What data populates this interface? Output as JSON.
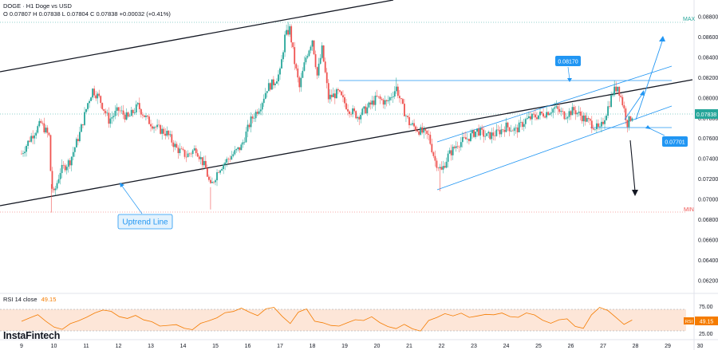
{
  "header": {
    "title": "DOGE · H1 Doge vs USD",
    "ohlc": "O 0.07807 H 0.07838 L 0.07804 C 0.07838 +0.00032 (+0.41%)"
  },
  "rsi_header": {
    "label": "RSI 14 close",
    "value": "49.15"
  },
  "brand": {
    "name": "InstaFintech"
  },
  "colors": {
    "up": "#26a69a",
    "down": "#ef5350",
    "channel": "#131722",
    "blue": "#2196f3",
    "label_bg": "#2196f3",
    "rsi_line": "#f57c00",
    "rsi_band": "#fde6d8",
    "price_tag": "#26a69a"
  },
  "chart_data": {
    "type": "candlestick",
    "yaxis": {
      "ticks": [
        "0.08800",
        "0.08600",
        "0.08400",
        "0.08200",
        "0.08000",
        "0.07800",
        "0.07600",
        "0.07400",
        "0.07200",
        "0.07000",
        "0.06800",
        "0.06600",
        "0.06400",
        "0.06200"
      ],
      "range": [
        0.061,
        0.0888
      ]
    },
    "xaxis": {
      "ticks": [
        "9",
        "10",
        "11",
        "12",
        "13",
        "14",
        "15",
        "16",
        "17",
        "18",
        "19",
        "20",
        "21",
        "22",
        "23",
        "24",
        "25",
        "26",
        "27",
        "28",
        "29",
        "30"
      ]
    },
    "max_label": "MAX",
    "min_label": "MIN",
    "price_labels": {
      "current": "0.07838",
      "resistance": "0.08170",
      "support": "0.07701"
    },
    "levels": {
      "resistance": 0.0817,
      "support": 0.07701,
      "max": 0.0875,
      "min": 0.0687,
      "current": 0.07838
    },
    "annotations": {
      "uptrend_line": "Uptrend Line"
    },
    "path": [
      [
        9,
        0.0745
      ],
      [
        9.3,
        0.0762
      ],
      [
        9.6,
        0.0775
      ],
      [
        9.85,
        0.0762
      ],
      [
        9.92,
        0.0715
      ],
      [
        10.0,
        0.0705
      ],
      [
        10.2,
        0.0728
      ],
      [
        10.5,
        0.0738
      ],
      [
        10.8,
        0.0765
      ],
      [
        11.05,
        0.0795
      ],
      [
        11.2,
        0.0808
      ],
      [
        11.4,
        0.08
      ],
      [
        11.7,
        0.0778
      ],
      [
        12.0,
        0.0788
      ],
      [
        12.3,
        0.078
      ],
      [
        12.6,
        0.0792
      ],
      [
        12.9,
        0.0778
      ],
      [
        13.2,
        0.077
      ],
      [
        13.5,
        0.0765
      ],
      [
        13.8,
        0.075
      ],
      [
        14.1,
        0.0743
      ],
      [
        14.4,
        0.075
      ],
      [
        14.7,
        0.073
      ],
      [
        14.85,
        0.0712
      ],
      [
        15.1,
        0.073
      ],
      [
        15.4,
        0.074
      ],
      [
        15.8,
        0.0752
      ],
      [
        16.1,
        0.0778
      ],
      [
        16.4,
        0.0793
      ],
      [
        16.6,
        0.081
      ],
      [
        16.8,
        0.0815
      ],
      [
        17.0,
        0.0825
      ],
      [
        17.15,
        0.086
      ],
      [
        17.3,
        0.0868
      ],
      [
        17.45,
        0.0835
      ],
      [
        17.6,
        0.081
      ],
      [
        17.8,
        0.084
      ],
      [
        18.0,
        0.0858
      ],
      [
        18.15,
        0.0822
      ],
      [
        18.3,
        0.0848
      ],
      [
        18.5,
        0.08
      ],
      [
        18.8,
        0.0805
      ],
      [
        19.1,
        0.079
      ],
      [
        19.4,
        0.0782
      ],
      [
        19.7,
        0.079
      ],
      [
        20.0,
        0.08
      ],
      [
        20.3,
        0.0795
      ],
      [
        20.6,
        0.081
      ],
      [
        20.8,
        0.079
      ],
      [
        21.0,
        0.0775
      ],
      [
        21.3,
        0.0768
      ],
      [
        21.6,
        0.0762
      ],
      [
        21.8,
        0.0738
      ],
      [
        22.0,
        0.0728
      ],
      [
        22.2,
        0.0743
      ],
      [
        22.5,
        0.0755
      ],
      [
        22.8,
        0.076
      ],
      [
        23.1,
        0.0768
      ],
      [
        23.4,
        0.0762
      ],
      [
        23.7,
        0.0765
      ],
      [
        24.0,
        0.0772
      ],
      [
        24.3,
        0.0768
      ],
      [
        24.6,
        0.0778
      ],
      [
        24.9,
        0.0782
      ],
      [
        25.2,
        0.0785
      ],
      [
        25.5,
        0.079
      ],
      [
        25.8,
        0.0783
      ],
      [
        26.1,
        0.0788
      ],
      [
        26.4,
        0.078
      ],
      [
        26.7,
        0.0773
      ],
      [
        26.9,
        0.0768
      ],
      [
        27.1,
        0.0786
      ],
      [
        27.3,
        0.0805
      ],
      [
        27.45,
        0.0812
      ],
      [
        27.6,
        0.0795
      ],
      [
        27.75,
        0.0775
      ],
      [
        27.9,
        0.0783
      ]
    ],
    "rsi": {
      "label": "RSI",
      "value": "49.15",
      "ticks": [
        "75.00",
        "25.00"
      ],
      "levels": [
        70,
        30
      ],
      "range": [
        15,
        90
      ],
      "values": [
        48,
        52,
        58,
        45,
        35,
        30,
        42,
        50,
        55,
        62,
        70,
        68,
        55,
        52,
        60,
        48,
        45,
        40,
        38,
        42,
        35,
        30,
        45,
        50,
        55,
        62,
        68,
        72,
        66,
        58,
        72,
        75,
        55,
        42,
        65,
        70,
        48,
        45,
        40,
        38,
        45,
        52,
        48,
        55,
        45,
        38,
        35,
        40,
        32,
        28,
        48,
        55,
        60,
        58,
        62,
        55,
        58,
        62,
        60,
        65,
        58,
        55,
        62,
        58,
        48,
        45,
        52,
        50,
        38,
        32,
        60,
        72,
        70,
        55,
        42,
        49
      ]
    }
  }
}
